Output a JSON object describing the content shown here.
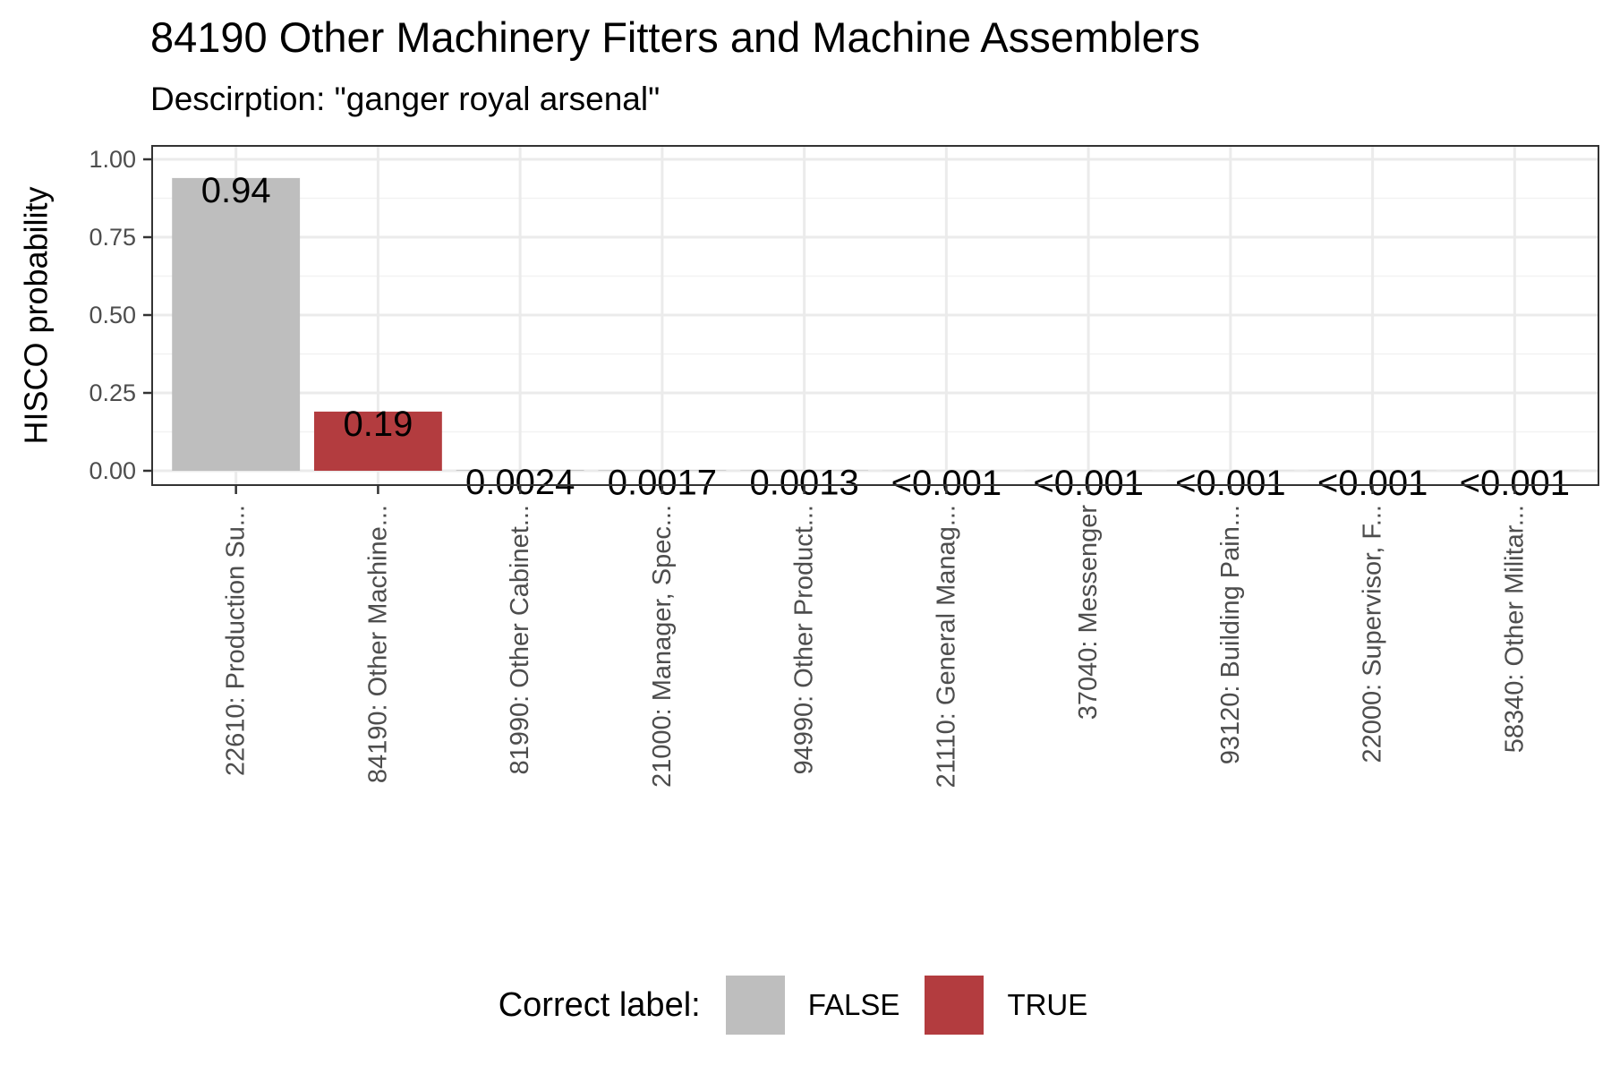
{
  "chart_data": {
    "type": "bar",
    "title": "84190 Other Machinery Fitters and Machine Assemblers",
    "subtitle": "Descirption: \"ganger royal arsenal\"",
    "ylabel": "HISCO probability",
    "xlabel": "",
    "ylim": [
      0,
      1.05
    ],
    "yticks": [
      "0.00",
      "0.25",
      "0.50",
      "0.75",
      "1.00"
    ],
    "ytick_values": [
      0,
      0.25,
      0.5,
      0.75,
      1.0
    ],
    "grid": true,
    "categories": [
      "22610: Production Su...",
      "84190: Other Machine...",
      "81990: Other Cabinet...",
      "21000: Manager, Spec...",
      "94990: Other Product...",
      "21110: General Manag...",
      "37040: Messenger",
      "93120: Building Pain...",
      "22000: Supervisor, F...",
      "58340: Other Militar..."
    ],
    "values": [
      0.94,
      0.19,
      0.0024,
      0.0017,
      0.0013,
      0.0005,
      0.0005,
      0.0005,
      0.0005,
      0.0005
    ],
    "value_labels": [
      "0.94",
      "0.19",
      "0.0024",
      "0.0017",
      "0.0013",
      "<0.001",
      "<0.001",
      "<0.001",
      "<0.001",
      "<0.001"
    ],
    "correct": [
      false,
      true,
      false,
      false,
      false,
      false,
      false,
      false,
      false,
      false
    ],
    "legend": {
      "title": "Correct label:",
      "placement": "bottom",
      "items": [
        {
          "label": "FALSE",
          "color": "#bebebe"
        },
        {
          "label": "TRUE",
          "color": "#b33c3f"
        }
      ]
    }
  }
}
